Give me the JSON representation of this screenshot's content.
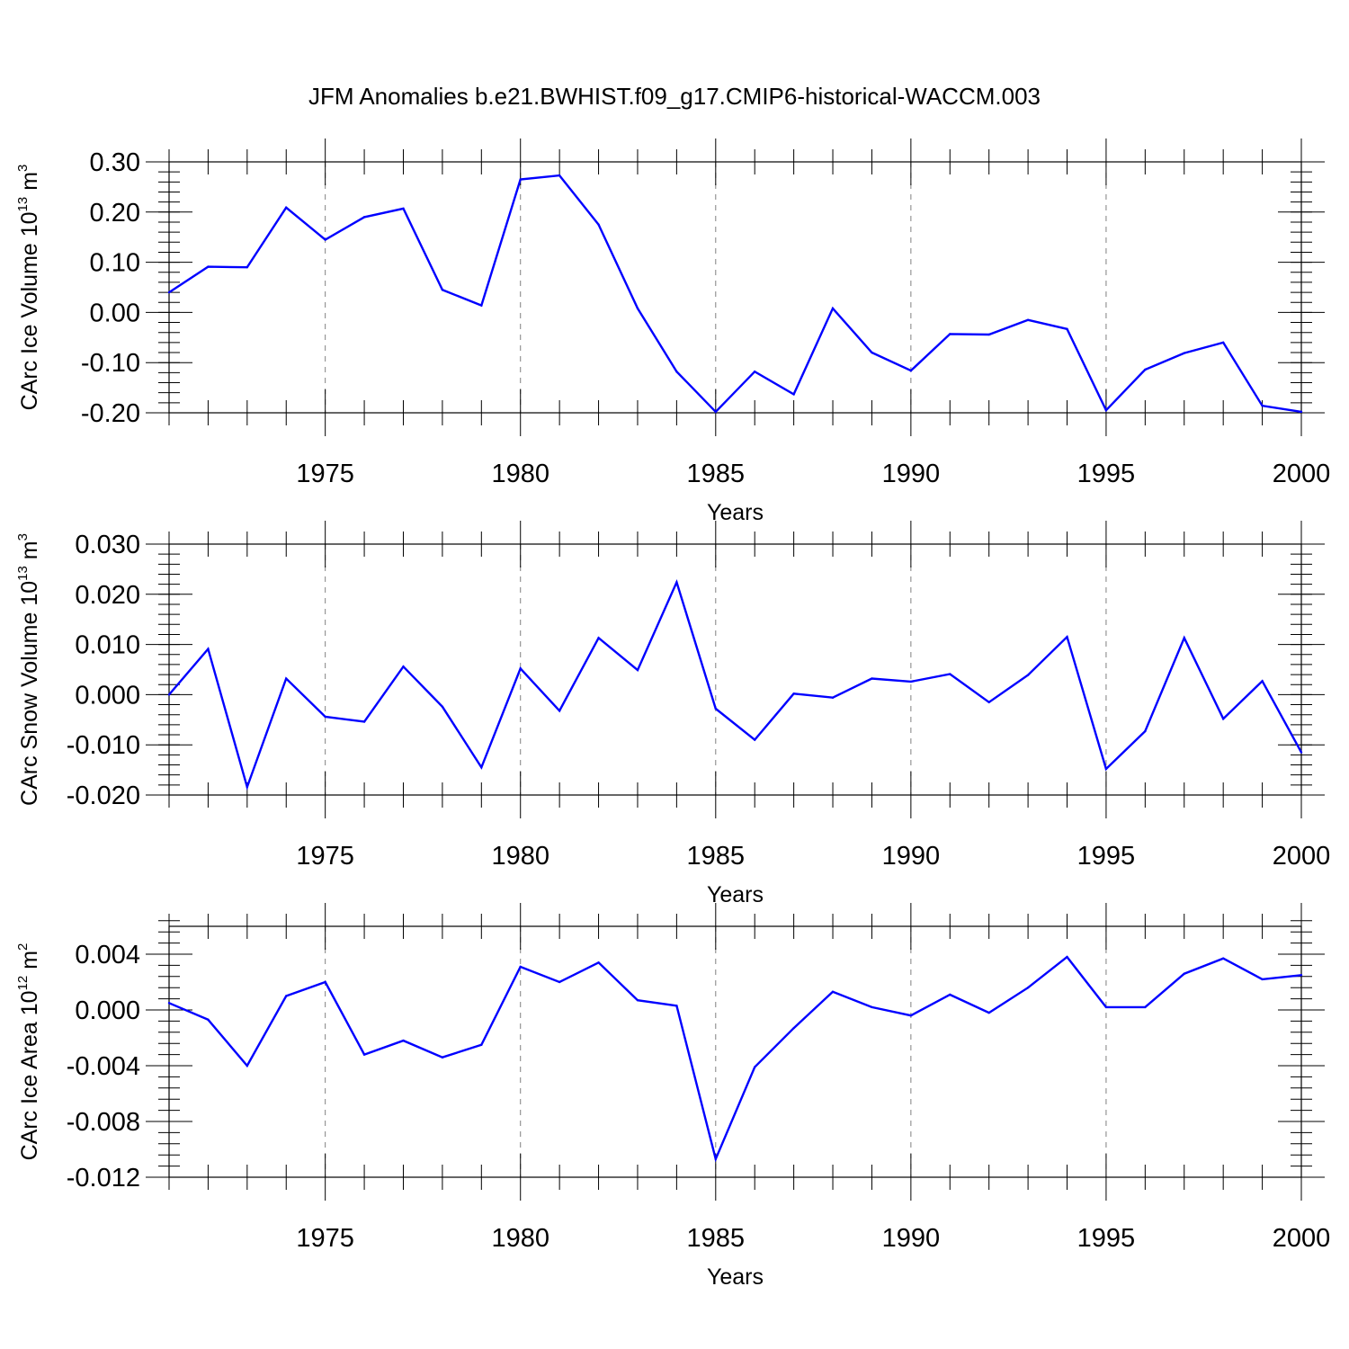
{
  "figure": {
    "title": "JFM Anomalies b.e21.BWHIST.f09_g17.CMIP6-historical-WACCM.003"
  },
  "colors": {
    "series": "#0000ff",
    "axis": "#000000",
    "grid": "#808080"
  },
  "chart_data": [
    {
      "type": "line",
      "ylabel": {
        "text": "CArc Ice Volume 10",
        "exponent": "13",
        "unit": " m",
        "unit_exponent": "3"
      },
      "xlabel": "Years",
      "xlim": [
        1971,
        2000
      ],
      "ylim": [
        -0.2,
        0.3
      ],
      "yticks": [
        -0.2,
        -0.1,
        0.0,
        0.1,
        0.2,
        0.3
      ],
      "ytick_labels": [
        "-0.20",
        "-0.10",
        "0.00",
        "0.10",
        "0.20",
        "0.30"
      ],
      "yminor_step": 0.02,
      "xticks": [
        1975,
        1980,
        1985,
        1990,
        1995,
        2000
      ],
      "xtick_labels": [
        "1975",
        "1980",
        "1985",
        "1990",
        "1995",
        "2000"
      ],
      "grid": "vertical dashed at major x ticks",
      "x": [
        1971,
        1972,
        1973,
        1974,
        1975,
        1976,
        1977,
        1978,
        1979,
        1980,
        1981,
        1982,
        1983,
        1984,
        1985,
        1986,
        1987,
        1988,
        1989,
        1990,
        1991,
        1992,
        1993,
        1994,
        1995,
        1996,
        1997,
        1998,
        1999,
        2000
      ],
      "values": [
        0.04,
        0.091,
        0.09,
        0.209,
        0.145,
        0.19,
        0.207,
        0.045,
        0.014,
        0.265,
        0.273,
        0.175,
        0.008,
        -0.118,
        -0.198,
        -0.118,
        -0.163,
        0.008,
        -0.08,
        -0.116,
        -0.043,
        -0.044,
        -0.015,
        -0.033,
        -0.195,
        -0.114,
        -0.081,
        -0.06,
        -0.186,
        -0.198
      ]
    },
    {
      "type": "line",
      "ylabel": {
        "text": "CArc Snow Volume 10",
        "exponent": "13",
        "unit": " m",
        "unit_exponent": "3"
      },
      "xlabel": "Years",
      "xlim": [
        1971,
        2000
      ],
      "ylim": [
        -0.02,
        0.03
      ],
      "yticks": [
        -0.02,
        -0.01,
        0.0,
        0.01,
        0.02,
        0.03
      ],
      "ytick_labels": [
        "-0.020",
        "-0.010",
        "0.000",
        "0.010",
        "0.020",
        "0.030"
      ],
      "yminor_step": 0.002,
      "xticks": [
        1975,
        1980,
        1985,
        1990,
        1995,
        2000
      ],
      "xtick_labels": [
        "1975",
        "1980",
        "1985",
        "1990",
        "1995",
        "2000"
      ],
      "grid": "vertical dashed at major x ticks",
      "x": [
        1971,
        1972,
        1973,
        1974,
        1975,
        1976,
        1977,
        1978,
        1979,
        1980,
        1981,
        1982,
        1983,
        1984,
        1985,
        1986,
        1987,
        1988,
        1989,
        1990,
        1991,
        1992,
        1993,
        1994,
        1995,
        1996,
        1997,
        1998,
        1999,
        2000
      ],
      "values": [
        0.0,
        0.0091,
        -0.0184,
        0.0032,
        -0.0044,
        -0.0054,
        0.0056,
        -0.0024,
        -0.0145,
        0.0052,
        -0.0032,
        0.0113,
        0.0049,
        0.0224,
        -0.0028,
        -0.009,
        0.0002,
        -0.0006,
        0.0032,
        0.0026,
        0.0041,
        -0.0015,
        0.0039,
        0.0115,
        -0.0148,
        -0.0073,
        0.0113,
        -0.0048,
        0.0027,
        -0.0115
      ]
    },
    {
      "type": "line",
      "ylabel": {
        "text": "CArc Ice Area 10",
        "exponent": "12",
        "unit": " m",
        "unit_exponent": "2"
      },
      "xlabel": "Years",
      "xlim": [
        1971,
        2000
      ],
      "ylim": [
        -0.012,
        0.006
      ],
      "yticks": [
        -0.012,
        -0.008,
        -0.004,
        0.0,
        0.004
      ],
      "ytick_labels": [
        "-0.012",
        "-0.008",
        "-0.004",
        "0.000",
        "0.004"
      ],
      "yminor_step": 0.0008,
      "xticks": [
        1975,
        1980,
        1985,
        1990,
        1995,
        2000
      ],
      "xtick_labels": [
        "1975",
        "1980",
        "1985",
        "1990",
        "1995",
        "2000"
      ],
      "grid": "vertical dashed at major x ticks",
      "x": [
        1971,
        1972,
        1973,
        1974,
        1975,
        1976,
        1977,
        1978,
        1979,
        1980,
        1981,
        1982,
        1983,
        1984,
        1985,
        1986,
        1987,
        1988,
        1989,
        1990,
        1991,
        1992,
        1993,
        1994,
        1995,
        1996,
        1997,
        1998,
        1999,
        2000
      ],
      "values": [
        0.0005,
        -0.0007,
        -0.004,
        0.001,
        0.002,
        -0.0032,
        -0.0022,
        -0.0034,
        -0.0025,
        0.0031,
        0.002,
        0.0034,
        0.0007,
        0.0003,
        -0.0107,
        -0.0041,
        -0.0013,
        0.0013,
        0.0002,
        -0.0004,
        0.0011,
        -0.0002,
        0.0016,
        0.0038,
        0.0002,
        0.0002,
        0.0026,
        0.0037,
        0.0022,
        0.0025
      ]
    }
  ]
}
